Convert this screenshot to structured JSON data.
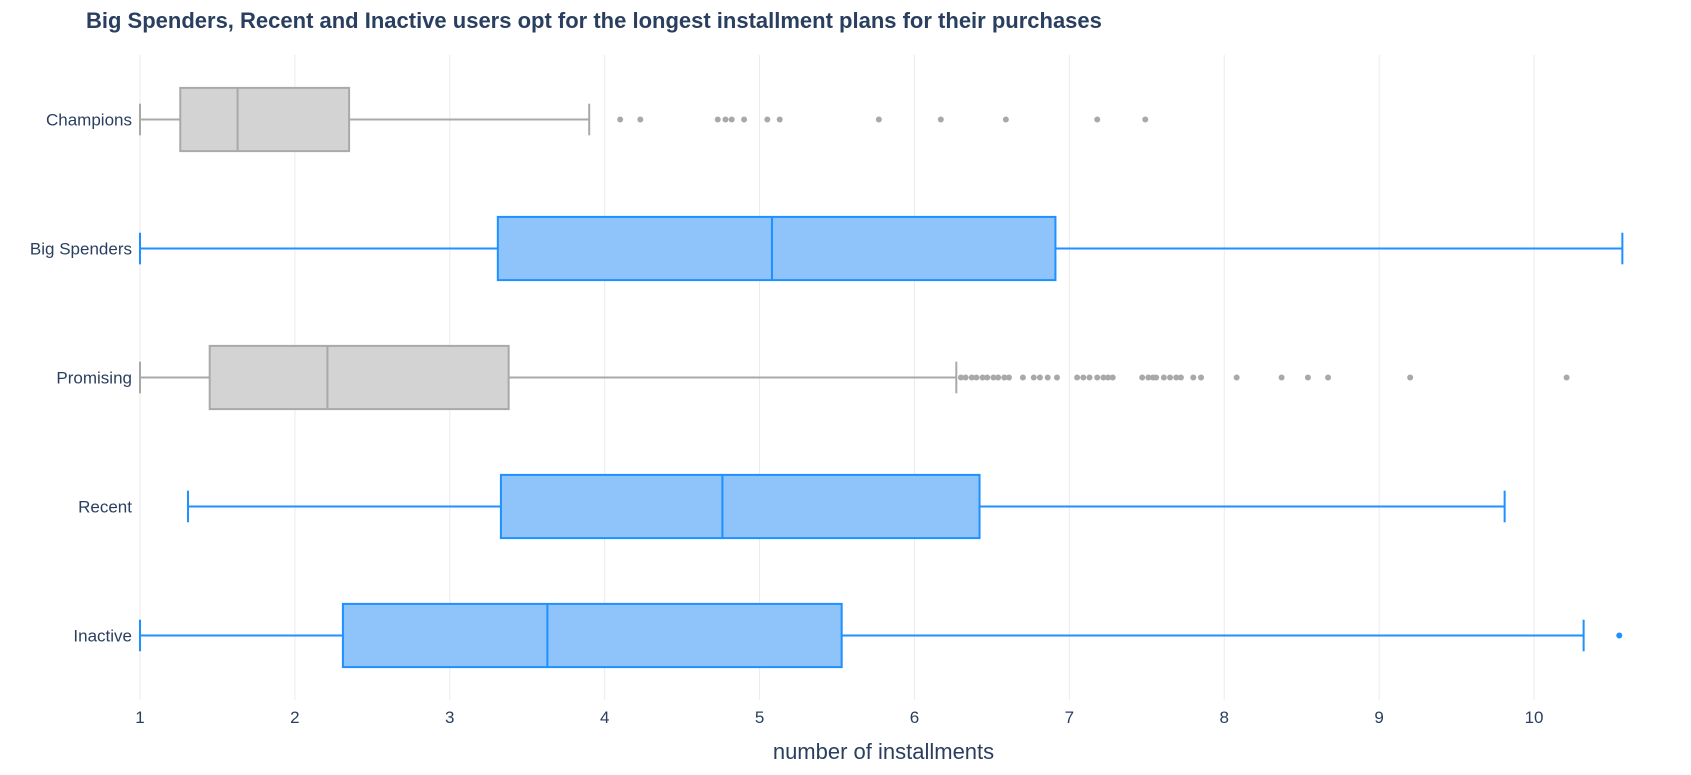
{
  "chart_data": {
    "type": "box",
    "orientation": "horizontal",
    "title": "Big Spenders, Recent and Inactive users opt for the longest installment plans for their purchases",
    "xlabel": "number of installments",
    "ylabel": "",
    "xlim": [
      1,
      10.6
    ],
    "xticks": [
      1,
      2,
      3,
      4,
      5,
      6,
      7,
      8,
      9,
      10
    ],
    "grid": true,
    "legend": "none",
    "colors": {
      "gray_fill": "#d3d3d3",
      "gray_line": "#a9a9a9",
      "blue_fill": "#8fc4fb",
      "blue_line": "#1e90ff",
      "text": "#2a3f5f",
      "grid": "#ebebeb"
    },
    "categories": [
      "Champions",
      "Big Spenders",
      "Promising",
      "Recent",
      "Inactive"
    ],
    "boxes": [
      {
        "category": "Champions",
        "color": "gray",
        "lowerfence": 1.0,
        "q1": 1.26,
        "median": 1.63,
        "q3": 2.35,
        "upperfence": 3.9,
        "outliers": [
          4.1,
          4.23,
          4.73,
          4.78,
          4.82,
          4.9,
          5.05,
          5.13,
          5.77,
          6.17,
          6.59,
          7.18,
          7.49
        ]
      },
      {
        "category": "Big Spenders",
        "color": "blue",
        "lowerfence": 1.0,
        "q1": 3.31,
        "median": 5.08,
        "q3": 6.91,
        "upperfence": 10.57,
        "outliers": []
      },
      {
        "category": "Promising",
        "color": "gray",
        "lowerfence": 1.0,
        "q1": 1.45,
        "median": 2.21,
        "q3": 3.38,
        "upperfence": 6.27,
        "outliers": [
          6.3,
          6.33,
          6.37,
          6.4,
          6.44,
          6.47,
          6.51,
          6.54,
          6.58,
          6.61,
          6.7,
          6.77,
          6.81,
          6.86,
          6.92,
          7.05,
          7.09,
          7.13,
          7.18,
          7.22,
          7.25,
          7.28,
          7.47,
          7.51,
          7.54,
          7.56,
          7.61,
          7.65,
          7.69,
          7.72,
          7.8,
          7.85,
          8.08,
          8.37,
          8.54,
          8.67,
          9.2,
          10.21
        ]
      },
      {
        "category": "Recent",
        "color": "blue",
        "lowerfence": 1.31,
        "q1": 3.33,
        "median": 4.76,
        "q3": 6.42,
        "upperfence": 9.81,
        "outliers": []
      },
      {
        "category": "Inactive",
        "color": "blue",
        "lowerfence": 1.0,
        "q1": 2.31,
        "median": 3.63,
        "q3": 5.53,
        "upperfence": 10.32,
        "outliers": [
          10.55
        ]
      }
    ]
  }
}
